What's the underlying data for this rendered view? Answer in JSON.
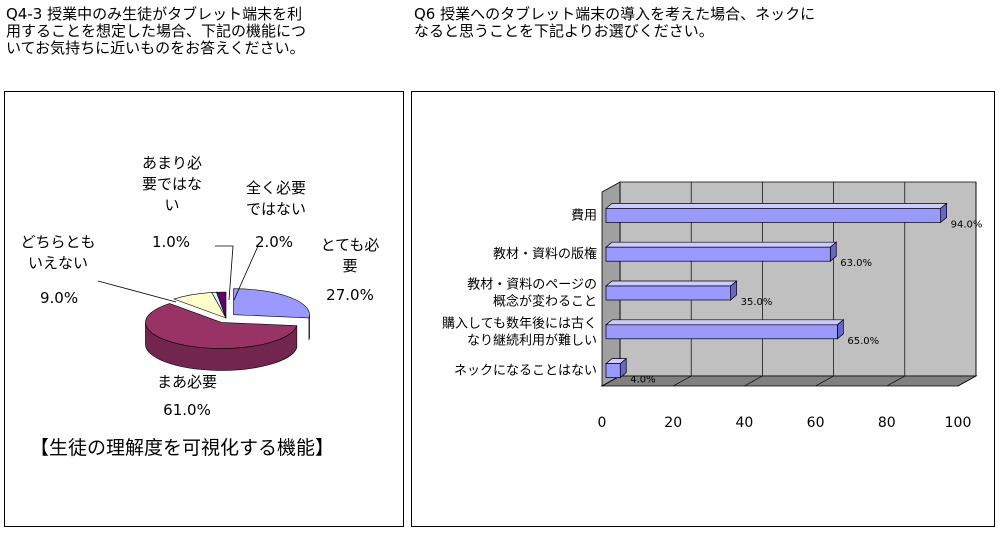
{
  "questions": {
    "q1": "Q4-3 授業中のみ生徒がタブレット端末を利\n用することを想定した場合、下記の機能につ\nいてお気持ちに近いものをお答えください。",
    "q2": "Q6 授業へのタブレット端末の導入を考えた場合、ネックに\nなると思うことを下記よりお選びください。"
  },
  "chart_data": [
    {
      "type": "pie",
      "caption": "【生徒の理解度を可視化する機能】",
      "slices": [
        {
          "label": "とても必要",
          "value": 27.0,
          "value_label": "27.0%",
          "color": "#9999ff"
        },
        {
          "label": "まあ必要",
          "value": 61.0,
          "value_label": "61.0%",
          "color": "#993366"
        },
        {
          "label": "どちらともいえない",
          "value": 9.0,
          "value_label": "9.0%",
          "color": "#ffffcc"
        },
        {
          "label": "あまり必要ではない",
          "value": 1.0,
          "value_label": "1.0%",
          "color": "#ccffff"
        },
        {
          "label": "全く必要ではない",
          "value": 2.0,
          "value_label": "2.0%",
          "color": "#660066"
        }
      ]
    },
    {
      "type": "bar",
      "orientation": "horizontal",
      "categories": [
        "費用",
        "教材・資料の版権",
        "教材・資料のページの概念が変わること",
        "購入しても数年後には古くなり継続利用が難しい",
        "ネックになることはない"
      ],
      "category_lines": [
        [
          "費用"
        ],
        [
          "教材・資料の版権"
        ],
        [
          "教材・資料のページの",
          "概念が変わること"
        ],
        [
          "購入しても数年後には古く",
          "なり継続利用が難しい"
        ],
        [
          "ネックになることはない"
        ]
      ],
      "values": [
        94.0,
        63.0,
        35.0,
        65.0,
        4.0
      ],
      "value_labels": [
        "94.0%",
        "63.0%",
        "35.0%",
        "65.0%",
        "4.0%"
      ],
      "xlim": [
        0,
        100
      ],
      "xticks": [
        "0",
        "20",
        "40",
        "60",
        "80",
        "100"
      ],
      "bar_color": "#9999ff",
      "wall_color": "#c0c0c0",
      "grid": true
    }
  ]
}
